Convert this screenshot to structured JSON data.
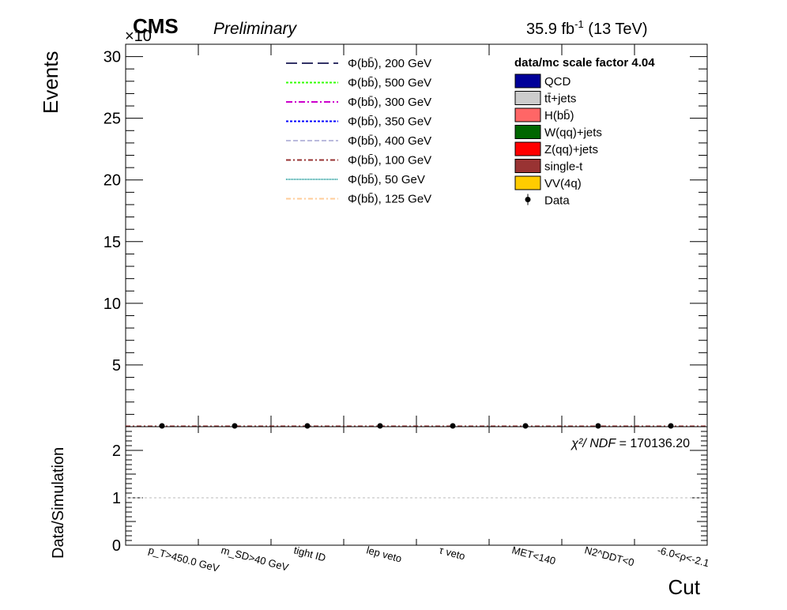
{
  "header": {
    "experiment": "CMS",
    "status": "Preliminary",
    "lumi_main": "35.9 fb",
    "lumi_sup": "-1",
    "lumi_energy": " (13 TeV)",
    "exponent": "×10"
  },
  "chart_data": [
    {
      "panel": "main",
      "type": "bar",
      "ylabel": "Events",
      "ylim": [
        0,
        31
      ],
      "yticks": [
        "5",
        "10",
        "15",
        "20",
        "25",
        "30"
      ],
      "categories": [
        "p_T>450.0 GeV",
        "m_SD>40 GeV",
        "tight ID",
        "lep veto",
        "τ veto",
        "MET<140",
        "N2^DDT<0",
        "-6.0<ρ<-2.1"
      ],
      "data_values": [
        0,
        0,
        0,
        0,
        0,
        0,
        0,
        0
      ],
      "scale_factor_text": "data/mc scale factor 4.04",
      "background_legend": [
        {
          "label": "QCD",
          "color": "#000099"
        },
        {
          "label": "tt̄+jets",
          "color": "#cccccc"
        },
        {
          "label": "H(bb̄)",
          "color": "#ff6666"
        },
        {
          "label": "W(qq)+jets",
          "color": "#006600"
        },
        {
          "label": "Z(qq)+jets",
          "color": "#ff0000"
        },
        {
          "label": "single-t",
          "color": "#993333"
        },
        {
          "label": "VV(4q)",
          "color": "#ffcc00"
        },
        {
          "label": "Data",
          "color": "#000000"
        }
      ],
      "signal_legend": [
        {
          "label": "Φ(bb̄), 200 GeV",
          "color": "#333366",
          "dash": "14,6"
        },
        {
          "label": "Φ(bb̄), 500 GeV",
          "color": "#33ff00",
          "dash": "3,2"
        },
        {
          "label": "Φ(bb̄), 300 GeV",
          "color": "#cc00cc",
          "dash": "8,3,2,3"
        },
        {
          "label": "Φ(bb̄), 350 GeV",
          "color": "#0000ff",
          "dash": "3,2"
        },
        {
          "label": "Φ(bb̄), 400 GeV",
          "color": "#bbbbdd",
          "dash": "6,3"
        },
        {
          "label": "Φ(bb̄), 100 GeV",
          "color": "#993333",
          "dash": "6,3,2,3"
        },
        {
          "label": "Φ(bb̄), 50 GeV",
          "color": "#009999",
          "dash": "1,1"
        },
        {
          "label": "Φ(bb̄), 125 GeV",
          "color": "#ffcc99",
          "dash": "6,3,2,3"
        }
      ]
    },
    {
      "panel": "ratio",
      "type": "scatter",
      "ylabel": "Data/Simulation",
      "xlabel": "Cut",
      "ylim": [
        0,
        2.5
      ],
      "yticks": [
        "0",
        "1",
        "2"
      ],
      "reference_line": 1,
      "chi2_label": "χ²/ NDF",
      "chi2_value": "= 170136.20"
    }
  ]
}
